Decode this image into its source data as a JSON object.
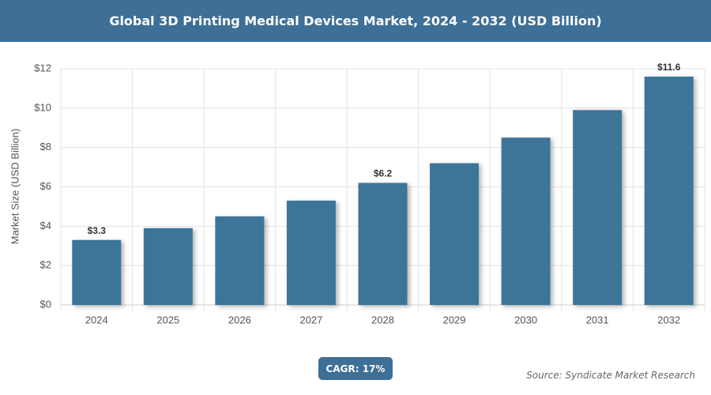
{
  "chart_data": {
    "type": "bar",
    "title": "Global 3D Printing Medical Devices Market, 2024 - 2032 (USD Billion)",
    "y_label": "Market Size (USD Billion)",
    "categories": [
      "2024",
      "2025",
      "2026",
      "2027",
      "2028",
      "2029",
      "2030",
      "2031",
      "2032"
    ],
    "values": [
      3.3,
      3.9,
      4.5,
      5.3,
      6.2,
      7.2,
      8.5,
      9.9,
      11.6
    ],
    "value_labels": [
      "$3.3",
      null,
      null,
      null,
      "$6.2",
      null,
      null,
      null,
      "$11.6"
    ],
    "color": "#3e7499",
    "ylim": [
      0,
      12
    ],
    "yticks": [
      {
        "value": 0,
        "label": "$0"
      },
      {
        "value": 2,
        "label": "$2"
      },
      {
        "value": 4,
        "label": "$4"
      },
      {
        "value": 6,
        "label": "$6"
      },
      {
        "value": 8,
        "label": "$8"
      },
      {
        "value": 10,
        "label": "$10"
      },
      {
        "value": 12,
        "label": "$12"
      }
    ],
    "grid": true,
    "annotation": "CAGR: 17%",
    "source": "Source: Syndicate Market Research"
  }
}
